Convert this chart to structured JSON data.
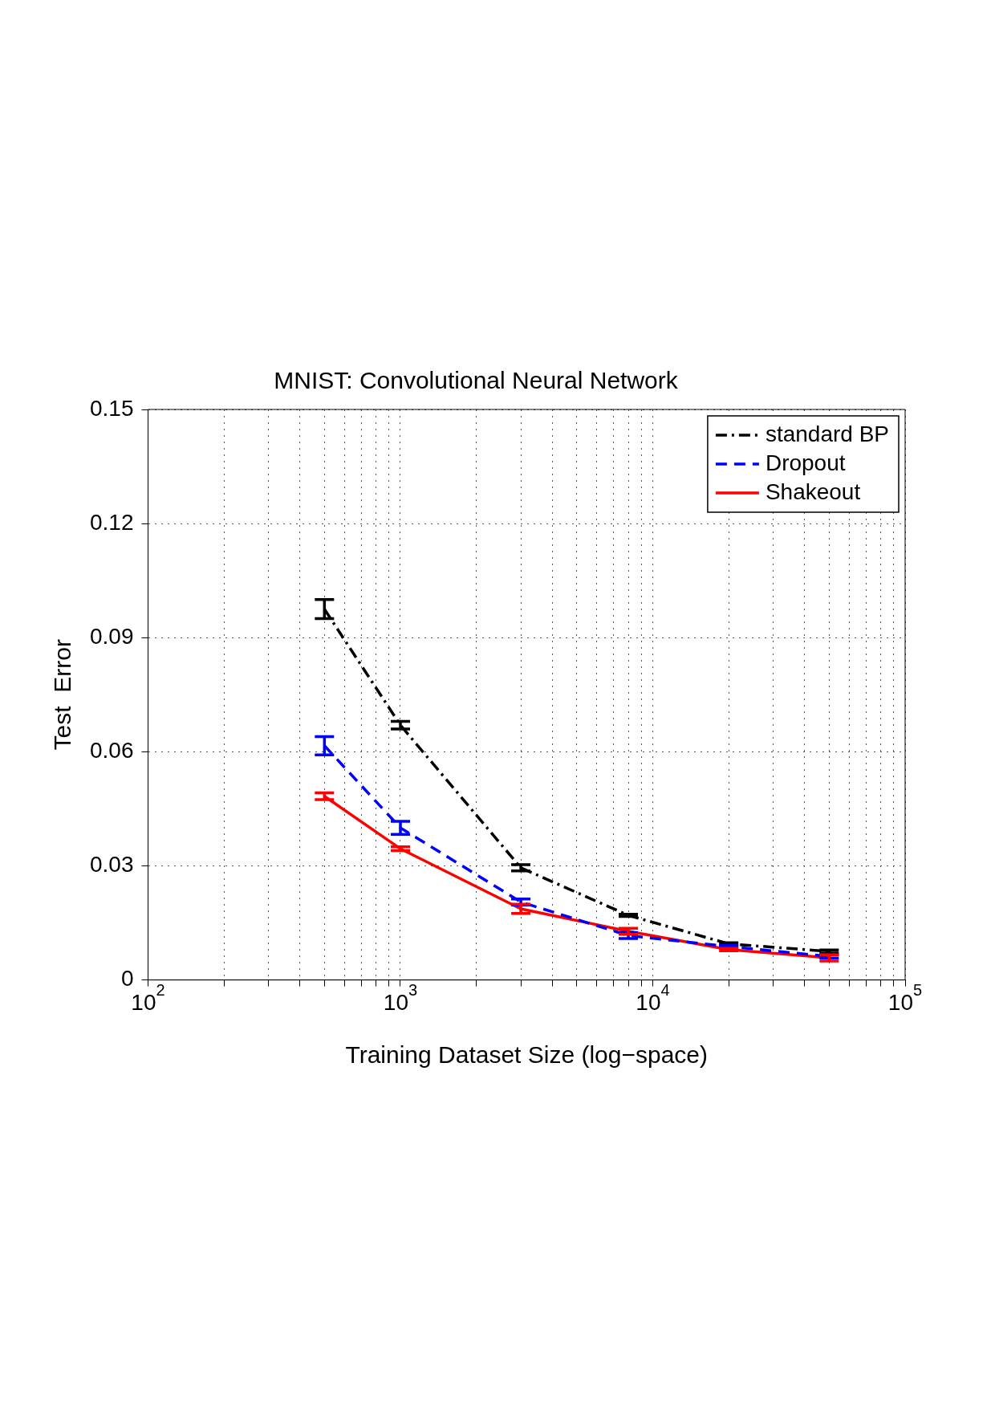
{
  "chart_data": {
    "type": "line",
    "title": "MNIST: Convolutional Neural Network",
    "xlabel": "Training Dataset Size (log−space)",
    "ylabel": "Test  Error",
    "x": [
      500,
      1000,
      3000,
      8000,
      20000,
      50000
    ],
    "series": [
      {
        "name": "standard BP",
        "color": "#000000",
        "line_style": "dashdot",
        "values": [
          0.0975,
          0.067,
          0.0295,
          0.017,
          0.0095,
          0.0075
        ],
        "errors": [
          0.0025,
          0.001,
          0.0008,
          0.0003,
          0.0003,
          0.0004
        ]
      },
      {
        "name": "Dropout",
        "color": "#0000ff",
        "line_style": "dashed",
        "values": [
          0.0616,
          0.04,
          0.0205,
          0.0117,
          0.0088,
          0.0062
        ],
        "errors": [
          0.0024,
          0.0017,
          0.0008,
          0.0008,
          0.0003,
          0.0004
        ]
      },
      {
        "name": "Shakeout",
        "color": "#ff0000",
        "line_style": "solid",
        "values": [
          0.0483,
          0.0345,
          0.0187,
          0.0128,
          0.008,
          0.0058
        ],
        "errors": [
          0.0009,
          0.0005,
          0.0012,
          0.0008,
          0.0003,
          0.0008
        ]
      }
    ],
    "log": "x",
    "xlim": [
      100,
      100000
    ],
    "xticks": [
      {
        "value": 100,
        "label": "10$^{2}$"
      },
      {
        "value": 200,
        "label": null
      },
      {
        "value": 300,
        "label": null
      },
      {
        "value": 400,
        "label": null
      },
      {
        "value": 500,
        "label": null
      },
      {
        "value": 600,
        "label": null
      },
      {
        "value": 700,
        "label": null
      },
      {
        "value": 800,
        "label": null
      },
      {
        "value": 900,
        "label": null
      },
      {
        "value": 1000,
        "label": "10$^{3}$"
      },
      {
        "value": 2000,
        "label": null
      },
      {
        "value": 3000,
        "label": null
      },
      {
        "value": 4000,
        "label": null
      },
      {
        "value": 5000,
        "label": null
      },
      {
        "value": 6000,
        "label": null
      },
      {
        "value": 7000,
        "label": null
      },
      {
        "value": 8000,
        "label": null
      },
      {
        "value": 9000,
        "label": null
      },
      {
        "value": 10000,
        "label": "10$^{4}$"
      },
      {
        "value": 20000,
        "label": null
      },
      {
        "value": 30000,
        "label": null
      },
      {
        "value": 40000,
        "label": null
      },
      {
        "value": 50000,
        "label": null
      },
      {
        "value": 60000,
        "label": null
      },
      {
        "value": 70000,
        "label": null
      },
      {
        "value": 80000,
        "label": null
      },
      {
        "value": 90000,
        "label": null
      },
      {
        "value": 100000,
        "label": "10$^{5}$"
      }
    ],
    "ylim": [
      0,
      0.15
    ],
    "yticks": [
      0,
      0.03,
      0.06,
      0.09,
      0.12,
      0.15
    ],
    "grid": true,
    "legend": "top right",
    "marker": "none"
  }
}
